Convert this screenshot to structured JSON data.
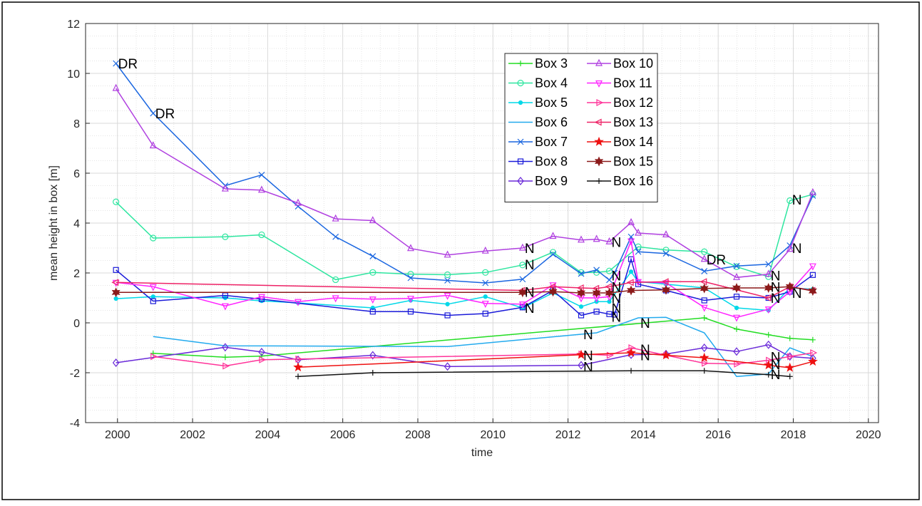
{
  "chart_data": {
    "type": "line",
    "ylabel": "mean height in box [m]",
    "xlabel": "time",
    "xlim": [
      1999.15,
      2020.27
    ],
    "xticks": [
      2000,
      2002,
      2004,
      2006,
      2008,
      2010,
      2012,
      2014,
      2016,
      2018,
      2020
    ],
    "ylim": [
      -4,
      12
    ],
    "yticks": [
      -4,
      -2,
      0,
      2,
      4,
      6,
      8,
      10,
      12
    ],
    "grid": true,
    "minor_grid": true,
    "series": [
      {
        "name": "Box 3",
        "color": "#22dd22",
        "marker": "+",
        "x": [
          2000.95,
          2002.87,
          2003.84,
          2015.63,
          2016.49,
          2017.34,
          2017.91,
          2018.52
        ],
        "values": [
          -1.22,
          -1.38,
          -1.33,
          0.2,
          -0.25,
          -0.48,
          -0.62,
          -0.68
        ]
      },
      {
        "name": "Box 4",
        "color": "#2ee6a0",
        "marker": "o",
        "x": [
          1999.96,
          2000.95,
          2002.87,
          2003.84,
          2005.81,
          2006.8,
          2007.81,
          2008.79,
          2009.8,
          2010.79,
          2011.6,
          2012.35,
          2012.76,
          2013.1,
          2013.87,
          2014.61,
          2015.63,
          2016.49,
          2017.34,
          2017.91,
          2018.52
        ],
        "values": [
          4.85,
          3.4,
          3.45,
          3.53,
          1.73,
          2.02,
          1.95,
          1.93,
          2.02,
          2.32,
          2.83,
          2.02,
          2.02,
          2.08,
          3.05,
          2.92,
          2.85,
          2.25,
          1.85,
          4.9,
          5.15
        ]
      },
      {
        "name": "Box 5",
        "color": "#00d8e8",
        "marker": ".",
        "x": [
          1999.96,
          2000.95,
          2002.87,
          2003.84,
          2004.81,
          2006.8,
          2007.81,
          2008.79,
          2009.8,
          2010.79,
          2011.6,
          2012.35,
          2012.76,
          2013.1,
          2013.68,
          2013.87,
          2014.61,
          2015.63,
          2016.49,
          2017.34,
          2017.91,
          2018.52
        ],
        "values": [
          0.97,
          1.05,
          1.0,
          0.88,
          0.8,
          0.6,
          0.9,
          0.75,
          1.05,
          0.6,
          1.2,
          0.65,
          0.85,
          0.85,
          2.05,
          1.65,
          1.55,
          1.4,
          0.6,
          0.5,
          1.4,
          1.35
        ]
      },
      {
        "name": "Box 6",
        "color": "#22aaee",
        "marker": "none",
        "x": [
          2000.95,
          2002.87,
          2008.79,
          2012.76,
          2013.87,
          2014.61,
          2015.63,
          2016.49,
          2017.34,
          2017.91,
          2018.52
        ],
        "values": [
          -0.55,
          -0.92,
          -0.95,
          -0.4,
          0.2,
          0.22,
          -0.4,
          -2.15,
          -2.05,
          -1.0,
          -1.35
        ]
      },
      {
        "name": "Box 7",
        "color": "#1a66e0",
        "marker": "x",
        "x": [
          1999.96,
          2000.95,
          2002.87,
          2003.84,
          2004.81,
          2005.81,
          2006.8,
          2007.81,
          2008.79,
          2009.8,
          2010.79,
          2011.6,
          2012.35,
          2012.76,
          2013.1,
          2013.24,
          2013.68,
          2013.87,
          2014.61,
          2015.63,
          2016.49,
          2017.34,
          2017.91,
          2018.52
        ],
        "values": [
          10.4,
          8.4,
          5.5,
          5.93,
          4.67,
          3.45,
          2.67,
          1.8,
          1.7,
          1.6,
          1.75,
          2.75,
          1.97,
          2.12,
          1.72,
          2.0,
          3.45,
          2.85,
          2.78,
          2.07,
          2.28,
          2.35,
          3.1,
          5.1
        ]
      },
      {
        "name": "Box 8",
        "color": "#1a1ad9",
        "marker": "s",
        "x": [
          1999.96,
          2000.95,
          2002.87,
          2003.84,
          2006.8,
          2007.81,
          2008.79,
          2009.8,
          2010.79,
          2011.6,
          2012.35,
          2012.76,
          2013.1,
          2013.24,
          2013.68,
          2013.87,
          2014.61,
          2015.63,
          2016.49,
          2017.34,
          2017.91,
          2018.52
        ],
        "values": [
          2.12,
          0.87,
          1.1,
          0.95,
          0.45,
          0.45,
          0.3,
          0.37,
          0.62,
          1.3,
          0.3,
          0.45,
          0.35,
          0.33,
          2.55,
          1.55,
          1.3,
          0.9,
          1.05,
          1.0,
          1.25,
          1.92
        ]
      },
      {
        "name": "Box 9",
        "color": "#6a2ad9",
        "marker": "d",
        "x": [
          1999.96,
          2002.87,
          2003.84,
          2004.81,
          2006.8,
          2008.79,
          2012.35,
          2013.68,
          2014.61,
          2015.63,
          2016.49,
          2017.34,
          2017.91,
          2018.52
        ],
        "values": [
          -1.6,
          -0.98,
          -1.17,
          -1.48,
          -1.3,
          -1.75,
          -1.7,
          -1.28,
          -1.25,
          -1.0,
          -1.15,
          -0.88,
          -1.35,
          -1.42
        ]
      },
      {
        "name": "Box 10",
        "color": "#b040e0",
        "marker": "^",
        "x": [
          1999.96,
          2000.95,
          2002.87,
          2003.84,
          2004.81,
          2005.81,
          2006.8,
          2007.81,
          2008.79,
          2009.8,
          2010.79,
          2011.6,
          2012.35,
          2012.76,
          2013.1,
          2013.68,
          2013.87,
          2014.61,
          2015.63,
          2016.49,
          2017.34,
          2017.91,
          2018.52
        ],
        "values": [
          9.4,
          7.1,
          5.37,
          5.32,
          4.8,
          4.17,
          4.1,
          2.98,
          2.72,
          2.88,
          3.0,
          3.47,
          3.32,
          3.35,
          3.25,
          4.02,
          3.6,
          3.53,
          2.55,
          1.82,
          1.95,
          2.95,
          5.22
        ]
      },
      {
        "name": "Box 11",
        "color": "#ff22ff",
        "marker": "v",
        "x": [
          1999.96,
          2000.95,
          2002.87,
          2003.84,
          2004.81,
          2005.81,
          2006.8,
          2007.81,
          2008.79,
          2009.8,
          2010.79,
          2011.6,
          2012.35,
          2012.76,
          2013.1,
          2013.68,
          2013.87,
          2014.61,
          2015.63,
          2016.49,
          2017.34,
          2017.91,
          2018.52
        ],
        "values": [
          1.62,
          1.45,
          0.68,
          1.05,
          0.85,
          1.0,
          0.95,
          0.98,
          1.1,
          0.78,
          0.75,
          1.52,
          1.0,
          1.0,
          1.05,
          3.28,
          1.65,
          1.6,
          0.62,
          0.22,
          0.55,
          1.25,
          2.28
        ]
      },
      {
        "name": "Box 12",
        "color": "#ff3399",
        "marker": ">",
        "x": [
          2000.95,
          2002.87,
          2003.84,
          2004.81,
          2012.35,
          2013.1,
          2013.68,
          2014.61,
          2015.63,
          2016.49,
          2017.34,
          2017.91,
          2018.52
        ],
        "values": [
          -1.35,
          -1.73,
          -1.48,
          -1.45,
          -1.25,
          -1.3,
          -1.0,
          -1.3,
          -1.62,
          -1.65,
          -1.5,
          -1.35,
          -1.2
        ]
      },
      {
        "name": "Box 13",
        "color": "#ee2266",
        "marker": "<",
        "x": [
          1999.96,
          2010.79,
          2011.6,
          2012.35,
          2012.76,
          2013.1,
          2013.68,
          2014.61,
          2015.63,
          2017.34,
          2017.91,
          2018.52
        ],
        "values": [
          1.62,
          1.3,
          1.45,
          1.4,
          1.38,
          1.45,
          1.62,
          1.65,
          1.65,
          1.0,
          1.45,
          1.3
        ]
      },
      {
        "name": "Box 14",
        "color": "#ee1111",
        "marker": "p",
        "x": [
          2004.81,
          2012.35,
          2013.68,
          2014.61,
          2015.63,
          2017.34,
          2017.91,
          2018.52
        ],
        "values": [
          -1.78,
          -1.28,
          -1.2,
          -1.3,
          -1.4,
          -1.7,
          -1.8,
          -1.55
        ]
      },
      {
        "name": "Box 15",
        "color": "#8b1a1a",
        "marker": "h",
        "x": [
          1999.96,
          2010.79,
          2011.6,
          2012.35,
          2012.76,
          2013.1,
          2013.68,
          2014.61,
          2015.63,
          2016.49,
          2017.34,
          2017.91,
          2018.52
        ],
        "values": [
          1.22,
          1.22,
          1.25,
          1.2,
          1.2,
          1.2,
          1.3,
          1.32,
          1.38,
          1.4,
          1.4,
          1.45,
          1.28
        ]
      },
      {
        "name": "Box 16",
        "color": "#111111",
        "marker": "+",
        "x": [
          2004.81,
          2006.8,
          2013.68,
          2015.63,
          2017.34,
          2017.91
        ],
        "values": [
          -2.15,
          -2.0,
          -1.92,
          -1.92,
          -2.08,
          -2.15
        ]
      }
    ],
    "annotations": [
      {
        "text": "DR",
        "x": 1999.96,
        "y": 10.4
      },
      {
        "text": "DR",
        "x": 2000.95,
        "y": 8.4
      },
      {
        "text": "DR",
        "x": 2015.63,
        "y": 2.55
      },
      {
        "text": "N",
        "x": 2010.79,
        "y": 3.0
      },
      {
        "text": "N",
        "x": 2010.79,
        "y": 2.35
      },
      {
        "text": "N",
        "x": 2010.79,
        "y": 1.25
      },
      {
        "text": "N",
        "x": 2010.79,
        "y": 0.6
      },
      {
        "text": "N",
        "x": 2012.35,
        "y": -0.45
      },
      {
        "text": "N",
        "x": 2012.35,
        "y": -1.3
      },
      {
        "text": "N",
        "x": 2012.35,
        "y": -1.75
      },
      {
        "text": "N",
        "x": 2013.1,
        "y": 3.25
      },
      {
        "text": "N",
        "x": 2013.1,
        "y": 1.9
      },
      {
        "text": "N",
        "x": 2013.1,
        "y": 1.45
      },
      {
        "text": "N",
        "x": 2013.1,
        "y": 1.0
      },
      {
        "text": "N",
        "x": 2013.1,
        "y": 0.6
      },
      {
        "text": "N",
        "x": 2013.1,
        "y": 0.25
      },
      {
        "text": "N",
        "x": 2013.87,
        "y": 0.0
      },
      {
        "text": "N",
        "x": 2013.87,
        "y": -1.05
      },
      {
        "text": "N",
        "x": 2013.87,
        "y": -1.3
      },
      {
        "text": "N",
        "x": 2017.34,
        "y": 1.9
      },
      {
        "text": "N",
        "x": 2017.34,
        "y": 1.45
      },
      {
        "text": "N",
        "x": 2017.34,
        "y": 1.0
      },
      {
        "text": "N",
        "x": 2017.34,
        "y": -1.35
      },
      {
        "text": "N",
        "x": 2017.34,
        "y": -1.65
      },
      {
        "text": "N",
        "x": 2017.34,
        "y": -2.05
      },
      {
        "text": "N",
        "x": 2017.91,
        "y": 4.95
      },
      {
        "text": "N",
        "x": 2017.91,
        "y": 3.0
      },
      {
        "text": "N",
        "x": 2017.91,
        "y": 1.2
      }
    ]
  }
}
